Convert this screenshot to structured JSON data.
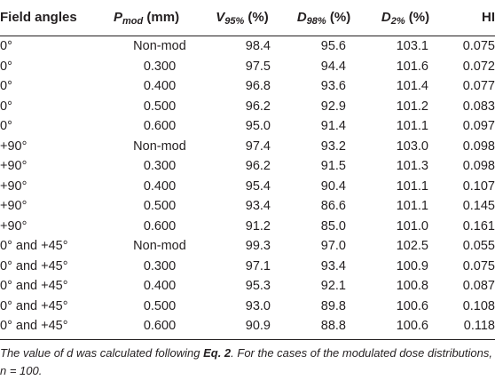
{
  "table": {
    "headers": [
      {
        "main": "Field angles",
        "sub": "",
        "after": ""
      },
      {
        "main": "P",
        "sub": "mod",
        "after": " (mm)"
      },
      {
        "main": "V",
        "sub": "95%",
        "after": " (%)"
      },
      {
        "main": "D",
        "sub": "98%",
        "after": " (%)"
      },
      {
        "main": "D",
        "sub": "2%",
        "after": " (%)"
      },
      {
        "main": "HI",
        "sub": "",
        "after": ""
      }
    ],
    "rows": [
      [
        "0°",
        "Non-mod",
        "98.4",
        "95.6",
        "103.1",
        "0.075"
      ],
      [
        "0°",
        "0.300",
        "97.5",
        "94.4",
        "101.6",
        "0.072"
      ],
      [
        "0°",
        "0.400",
        "96.8",
        "93.6",
        "101.4",
        "0.077"
      ],
      [
        "0°",
        "0.500",
        "96.2",
        "92.9",
        "101.2",
        "0.083"
      ],
      [
        "0°",
        "0.600",
        "95.0",
        "91.4",
        "101.1",
        "0.097"
      ],
      [
        "+90°",
        "Non-mod",
        "97.4",
        "93.2",
        "103.0",
        "0.098"
      ],
      [
        "+90°",
        "0.300",
        "96.2",
        "91.5",
        "101.3",
        "0.098"
      ],
      [
        "+90°",
        "0.400",
        "95.4",
        "90.4",
        "101.1",
        "0.107"
      ],
      [
        "+90°",
        "0.500",
        "93.4",
        "86.6",
        "101.1",
        "0.145"
      ],
      [
        "+90°",
        "0.600",
        "91.2",
        "85.0",
        "101.0",
        "0.161"
      ],
      [
        "0° and +45°",
        "Non-mod",
        "99.3",
        "97.0",
        "102.5",
        "0.055"
      ],
      [
        "0° and +45°",
        "0.300",
        "97.1",
        "93.4",
        "100.9",
        "0.075"
      ],
      [
        "0° and +45°",
        "0.400",
        "95.3",
        "92.1",
        "100.8",
        "0.087"
      ],
      [
        "0° and +45°",
        "0.500",
        "93.0",
        "89.8",
        "100.6",
        "0.108"
      ],
      [
        "0° and +45°",
        "0.600",
        "90.9",
        "88.8",
        "100.6",
        "0.118"
      ]
    ]
  },
  "footnote": {
    "part1": "The value of d was calculated following ",
    "eq_ref": "Eq. 2",
    "part2": ". For the cases of the modulated dose distributions, n = 100."
  }
}
